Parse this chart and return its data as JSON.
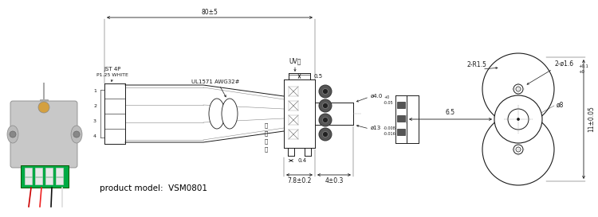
{
  "bg_color": "#ffffff",
  "line_color": "#1a1a1a",
  "dim_color": "#1a1a1a",
  "product_model": "product model:  VSM0801",
  "annotations": {
    "dim_80": "80±5",
    "dim_05": "0.5",
    "dim_04": "0.4",
    "dim_78": "7.8±0.2",
    "dim_4": "4±0.3",
    "dim_65": "6.5",
    "dim_11": "11±0.05",
    "dim_phi8": "ø8",
    "dim_phi4": "ø4.0",
    "dim_phi4_tol": "+0\n-0.05",
    "dim_phi13": "ø13",
    "dim_phi13_tol": "-0.008\n-0.016",
    "dim_r15": "2-R1.5",
    "dim_phi16": "2-ø1.6",
    "dim_phi16_tol": "+0.1\n+0",
    "jst": "JST 4P",
    "jst2": "P1.25 WHITE",
    "ul1571": "UL1571 AWG32#",
    "uv": "UV胶",
    "zilian": "自",
    "zi_red": "红",
    "zi_black": "黑",
    "zi_white": "白"
  }
}
